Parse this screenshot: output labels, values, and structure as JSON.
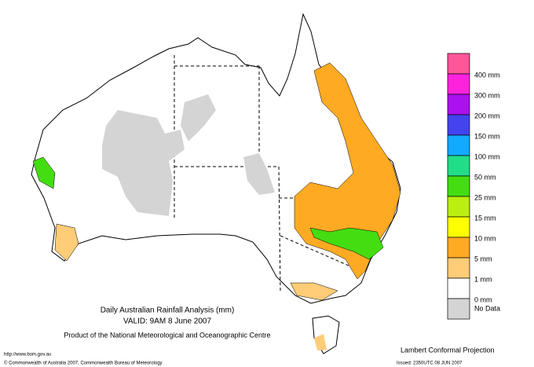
{
  "header": {
    "title": "Daily Australian Rainfall Analysis (mm)",
    "valid": "VALID: 9AM  8 June 2007",
    "product": "Product of the National Meteorological and Oceanographic Centre"
  },
  "footer": {
    "url": "http://www.bom.gov.au",
    "copyright": "© Commonwealth of Australia 2007, Commonwealth Bureau of Meteorology",
    "projection": "Lambert Conformal Projection",
    "issued": "Issued: 2350UTC 08 JUN 2007"
  },
  "legend": [
    {
      "color": "#ff5599",
      "label": "400 mm"
    },
    {
      "color": "#ff22dd",
      "label": "300 mm"
    },
    {
      "color": "#aa11ee",
      "label": "200 mm"
    },
    {
      "color": "#4444ee",
      "label": "150 mm"
    },
    {
      "color": "#11aaff",
      "label": "100 mm"
    },
    {
      "color": "#22dd88",
      "label": "50 mm"
    },
    {
      "color": "#44dd11",
      "label": "25 mm"
    },
    {
      "color": "#bbee11",
      "label": "15 mm"
    },
    {
      "color": "#ffff00",
      "label": "10 mm"
    },
    {
      "color": "#ffaa22",
      "label": "5 mm"
    },
    {
      "color": "#ffcc77",
      "label": "1 mm"
    },
    {
      "color": "#ffffff",
      "label": "0 mm"
    },
    {
      "color": "#d4d4d4",
      "label": "No Data"
    }
  ]
}
